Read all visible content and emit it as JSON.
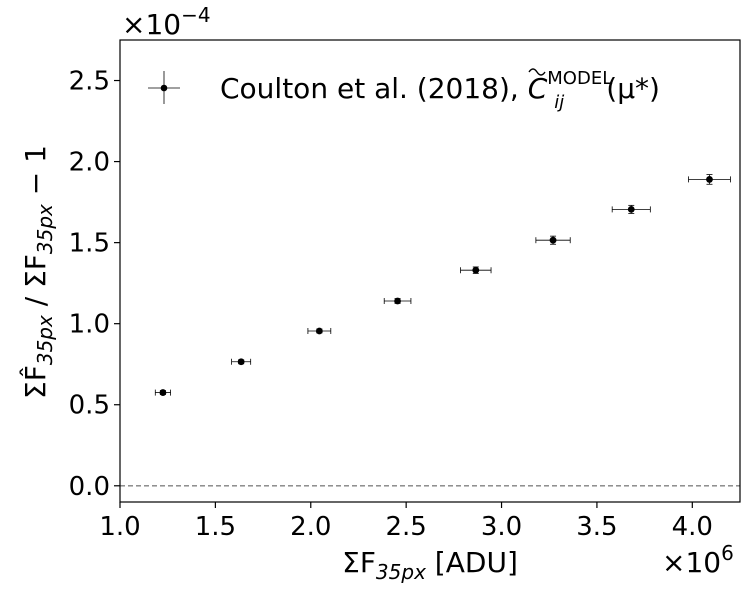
{
  "chart_data": {
    "type": "scatter",
    "xlabel": {
      "main": "ΣF",
      "sub": "35px",
      "unit": " [ADU]"
    },
    "ylabel": {
      "hat": "ΣF̂",
      "sub1": "35px",
      "sep": " / ΣF",
      "sub2": "35px",
      "tail": " − 1"
    },
    "x_multiplier": {
      "base": "×10",
      "exp": "6"
    },
    "y_multiplier": {
      "base": "×10",
      "exp": "−4"
    },
    "xlim": [
      1.0,
      4.25
    ],
    "ylim": [
      -0.1,
      2.75
    ],
    "xticks": [
      {
        "value": 1.0,
        "label": "1.0"
      },
      {
        "value": 1.5,
        "label": "1.5"
      },
      {
        "value": 2.0,
        "label": "2.0"
      },
      {
        "value": 2.5,
        "label": "2.5"
      },
      {
        "value": 3.0,
        "label": "3.0"
      },
      {
        "value": 3.5,
        "label": "3.5"
      },
      {
        "value": 4.0,
        "label": "4.0"
      }
    ],
    "yticks": [
      {
        "value": 0.0,
        "label": "0.0"
      },
      {
        "value": 0.5,
        "label": "0.5"
      },
      {
        "value": 1.0,
        "label": "1.0"
      },
      {
        "value": 1.5,
        "label": "1.5"
      },
      {
        "value": 2.0,
        "label": "2.0"
      },
      {
        "value": 2.5,
        "label": "2.5"
      }
    ],
    "reference_line": {
      "y": 0.0,
      "style": "dashed",
      "color": "#808080"
    },
    "legend": {
      "placement": "top-left",
      "label_prefix": "Coulton et al. (2018), ",
      "label_math": {
        "symbol": "C",
        "sub": "ij",
        "sup": "MODEL",
        "arg": "(μ*)"
      }
    },
    "series": [
      {
        "marker": "circle",
        "color": "#000000",
        "points": [
          {
            "x": 1.225,
            "y": 0.575,
            "xerr": 0.04,
            "yerr": 0.012
          },
          {
            "x": 1.635,
            "y": 0.765,
            "xerr": 0.05,
            "yerr": 0.012
          },
          {
            "x": 2.045,
            "y": 0.955,
            "xerr": 0.06,
            "yerr": 0.012
          },
          {
            "x": 2.455,
            "y": 1.14,
            "xerr": 0.07,
            "yerr": 0.015
          },
          {
            "x": 2.865,
            "y": 1.33,
            "xerr": 0.08,
            "yerr": 0.02
          },
          {
            "x": 3.27,
            "y": 1.515,
            "xerr": 0.09,
            "yerr": 0.025
          },
          {
            "x": 3.68,
            "y": 1.705,
            "xerr": 0.1,
            "yerr": 0.025
          },
          {
            "x": 4.09,
            "y": 1.89,
            "xerr": 0.11,
            "yerr": 0.03
          }
        ]
      }
    ],
    "grid": false
  }
}
